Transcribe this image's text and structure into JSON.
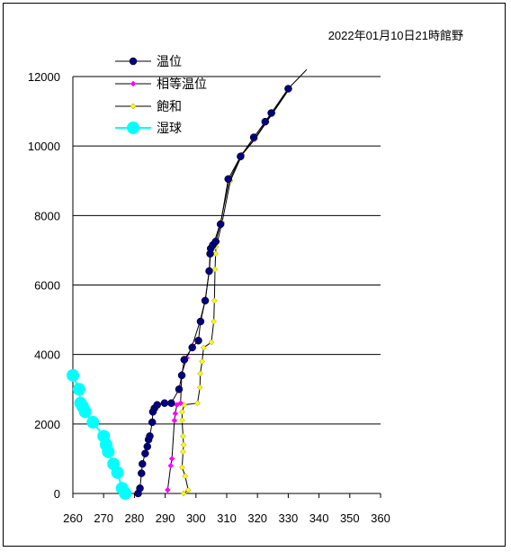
{
  "chart_data": {
    "type": "scatter",
    "title": "2022年01月10日21時館野",
    "xlabel": "",
    "ylabel": "",
    "xlim": [
      260,
      360
    ],
    "ylim": [
      0,
      12000
    ],
    "x_ticks": [
      "260",
      "270",
      "280",
      "290",
      "300",
      "310",
      "320",
      "330",
      "340",
      "350",
      "360"
    ],
    "y_ticks": [
      "0",
      "2000",
      "4000",
      "6000",
      "8000",
      "10000",
      "12000"
    ],
    "grid": "horizontal",
    "legend_position": "top-left",
    "series": [
      {
        "name": "温位",
        "color": "#000080",
        "marker": "circle",
        "line_color": "#000000",
        "points": [
          [
            281.2,
            0
          ],
          [
            281.8,
            150
          ],
          [
            282.3,
            580
          ],
          [
            282.6,
            850
          ],
          [
            283.5,
            1150
          ],
          [
            284.2,
            1350
          ],
          [
            284.6,
            1550
          ],
          [
            285.0,
            1650
          ],
          [
            285.8,
            2050
          ],
          [
            286.0,
            2350
          ],
          [
            286.5,
            2450
          ],
          [
            287.4,
            2550
          ],
          [
            289.8,
            2600
          ],
          [
            292.0,
            2600
          ],
          [
            294.5,
            3000
          ],
          [
            295.4,
            3400
          ],
          [
            296.2,
            3850
          ],
          [
            298.8,
            4200
          ],
          [
            300.8,
            4400
          ],
          [
            301.5,
            4950
          ],
          [
            303.0,
            5550
          ],
          [
            304.3,
            6400
          ],
          [
            304.6,
            6900
          ],
          [
            304.8,
            7050
          ],
          [
            305.5,
            7150
          ],
          [
            306.4,
            7250
          ],
          [
            308.0,
            7750
          ],
          [
            310.5,
            9050
          ],
          [
            314.5,
            9700
          ],
          [
            318.8,
            10250
          ],
          [
            322.5,
            10700
          ],
          [
            324.5,
            10950
          ],
          [
            330.0,
            11650
          ],
          [
            336.0,
            12200
          ]
        ]
      },
      {
        "name": "相等温位",
        "color": "#ff00ff",
        "marker": "diamond",
        "line_color": "#000000",
        "points": [
          [
            290.8,
            100
          ],
          [
            291.8,
            800
          ],
          [
            292.2,
            1000
          ],
          [
            293.0,
            2100
          ],
          [
            293.3,
            2300
          ],
          [
            293.8,
            2550
          ],
          [
            295.0,
            2600
          ],
          [
            295.4,
            3450
          ],
          [
            297.0,
            3900
          ],
          [
            298.8,
            4250
          ],
          [
            301.3,
            4950
          ],
          [
            303.0,
            5550
          ],
          [
            304.4,
            6450
          ],
          [
            304.7,
            6900
          ],
          [
            305.0,
            7100
          ],
          [
            306.0,
            7250
          ],
          [
            308.0,
            7800
          ],
          [
            310.8,
            9000
          ],
          [
            314.8,
            9750
          ],
          [
            319.0,
            10200
          ],
          [
            322.8,
            10700
          ],
          [
            324.8,
            10950
          ],
          [
            330.2,
            11650
          ]
        ]
      },
      {
        "name": "飽和",
        "color": "#ffff00",
        "marker": "diamond",
        "line_color": "#000000",
        "points": [
          [
            296.0,
            0
          ],
          [
            297.5,
            100
          ],
          [
            296.5,
            500
          ],
          [
            295.5,
            750
          ],
          [
            295.8,
            1200
          ],
          [
            296.0,
            1400
          ],
          [
            295.8,
            1650
          ],
          [
            295.5,
            2100
          ],
          [
            295.5,
            2350
          ],
          [
            296.2,
            2550
          ],
          [
            300.5,
            2600
          ],
          [
            301.3,
            3050
          ],
          [
            301.4,
            3450
          ],
          [
            302.0,
            3800
          ],
          [
            302.5,
            4200
          ],
          [
            305.0,
            4350
          ],
          [
            305.8,
            4950
          ],
          [
            306.0,
            5550
          ],
          [
            306.2,
            6450
          ],
          [
            306.4,
            6900
          ],
          [
            306.5,
            7100
          ],
          [
            307.0,
            7250
          ],
          [
            308.5,
            7800
          ],
          [
            311.2,
            9000
          ],
          [
            315.0,
            9750
          ],
          [
            319.2,
            10200
          ],
          [
            323.0,
            10700
          ],
          [
            325.0,
            10950
          ],
          [
            330.4,
            11650
          ]
        ]
      },
      {
        "name": "湿球",
        "color": "#00ffff",
        "marker": "circle",
        "line_color": "#00ffff",
        "points": [
          [
            260.0,
            3400
          ],
          [
            262.0,
            3000
          ],
          [
            262.5,
            2600
          ],
          [
            263.2,
            2500
          ],
          [
            264.0,
            2350
          ],
          [
            266.5,
            2050
          ],
          [
            270.0,
            1650
          ],
          [
            270.8,
            1400
          ],
          [
            271.5,
            1200
          ],
          [
            273.2,
            850
          ],
          [
            274.5,
            600
          ],
          [
            276.0,
            150
          ],
          [
            277.0,
            0
          ]
        ]
      }
    ]
  }
}
